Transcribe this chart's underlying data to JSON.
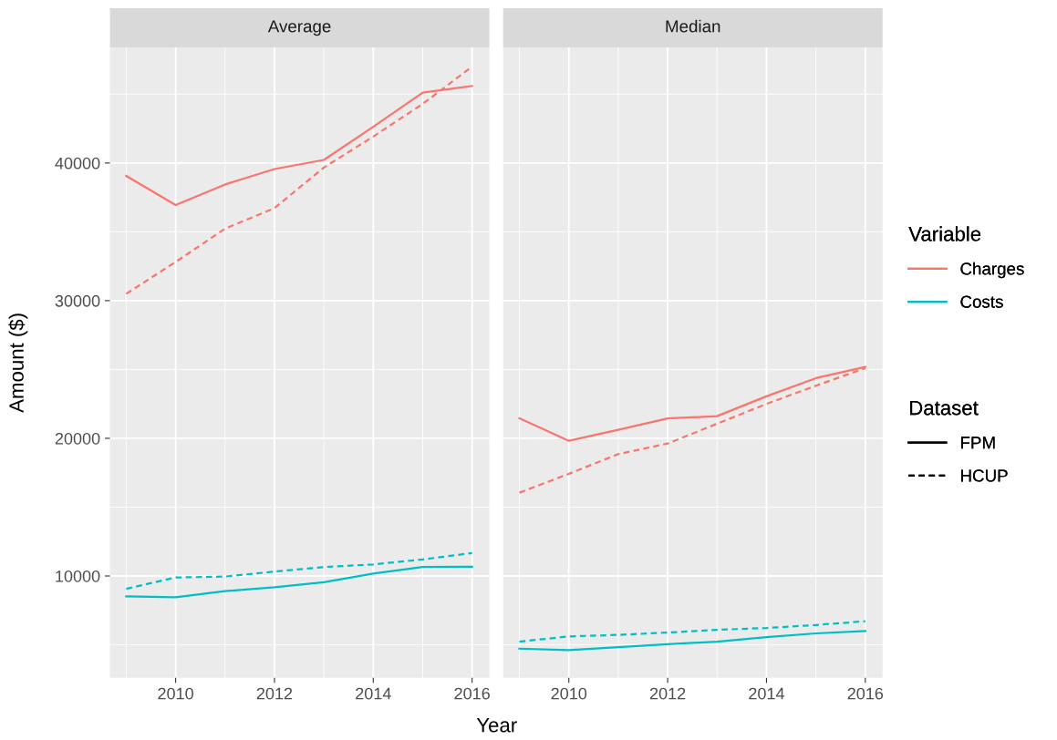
{
  "chart_data": [
    {
      "type": "line",
      "title": "Average",
      "xlabel": "Year",
      "ylabel": "Amount ($)",
      "x": [
        2009,
        2010,
        2011,
        2012,
        2013,
        2014,
        2015,
        2016
      ],
      "xlim": [
        2008.67,
        2016.35
      ],
      "xticks": [
        2010,
        2012,
        2014,
        2016
      ],
      "ylim": [
        2600,
        48400
      ],
      "yticks": [
        10000,
        20000,
        30000,
        40000
      ],
      "grid": true,
      "legend": "right",
      "legend_title": "Variable",
      "annotations": [
        "Dataset",
        "FPM",
        "HCUP"
      ],
      "series": [
        {
          "name": "Charges",
          "color": "#f8766d",
          "line_style": "solid",
          "values": [
            39060,
            36950,
            38440,
            39560,
            40220,
            42630,
            45110,
            45590
          ]
        },
        {
          "color": "#f8766d",
          "line_style": "dashed",
          "values": [
            30500,
            32810,
            35230,
            36720,
            39670,
            41920,
            44290,
            47000
          ]
        },
        {
          "name": "Costs",
          "color": "#00bfc4",
          "line_style": "solid",
          "values": [
            8520,
            8450,
            8900,
            9180,
            9540,
            10180,
            10650,
            10670
          ]
        },
        {
          "color": "#00bfc4",
          "line_style": "dashed",
          "values": [
            9070,
            9890,
            9960,
            10320,
            10650,
            10840,
            11200,
            11670
          ]
        }
      ]
    },
    {
      "type": "line",
      "title": "Median",
      "x": [
        2009,
        2010,
        2011,
        2012,
        2013,
        2014,
        2015,
        2016
      ],
      "xlim": [
        2008.67,
        2016.35
      ],
      "xticks": [
        2010,
        2012,
        2014,
        2016
      ],
      "ylim": [
        2600,
        48400
      ],
      "yticks": [
        10000,
        20000,
        30000,
        40000
      ],
      "grid": true,
      "tick_labels": "x",
      "series": [
        {
          "color": "#f8766d",
          "line_style": "solid",
          "values": [
            21460,
            19820,
            20620,
            21440,
            21610,
            23050,
            24370,
            25190
          ]
        },
        {
          "color": "#f8766d",
          "line_style": "dashed",
          "values": [
            16050,
            17420,
            18850,
            19620,
            21060,
            22500,
            23820,
            25100
          ]
        },
        {
          "color": "#00bfc4",
          "line_style": "solid",
          "values": [
            4720,
            4610,
            4830,
            5050,
            5230,
            5560,
            5830,
            6000
          ]
        },
        {
          "color": "#00bfc4",
          "line_style": "dashed",
          "values": [
            5230,
            5610,
            5720,
            5890,
            6090,
            6220,
            6440,
            6710
          ]
        }
      ]
    }
  ]
}
